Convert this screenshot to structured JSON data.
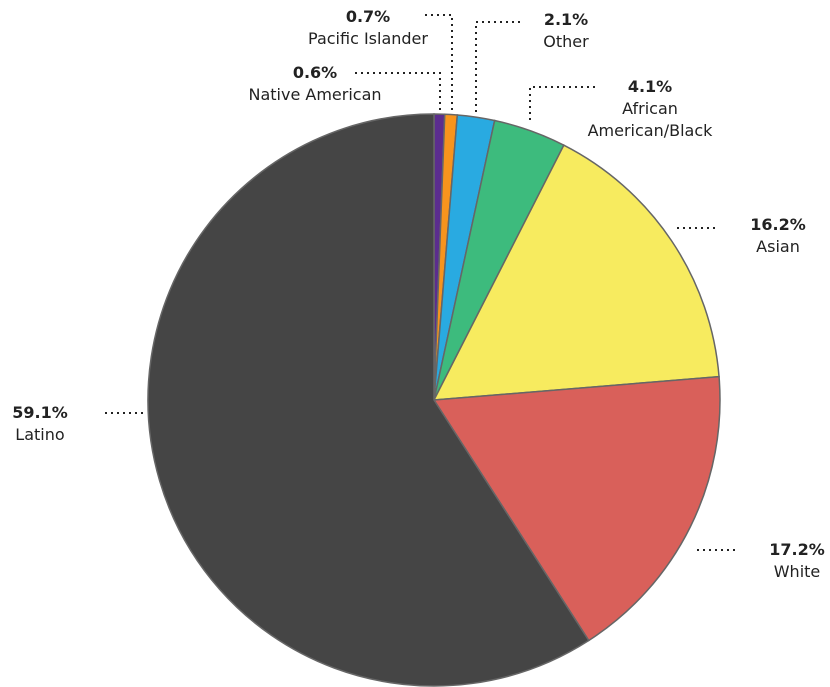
{
  "chart_data": {
    "type": "pie",
    "categories": [
      "Native American",
      "Pacific Islander",
      "Other",
      "African American/Black",
      "Asian",
      "White",
      "Latino"
    ],
    "values": [
      0.6,
      0.7,
      2.1,
      4.1,
      16.2,
      17.2,
      59.1
    ],
    "value_labels": [
      "0.6%",
      "0.7%",
      "2.1%",
      "4.1%",
      "16.2%",
      "17.2%",
      "59.1%"
    ],
    "colors": [
      "#5b2d8e",
      "#f7941d",
      "#29aae1",
      "#3dbb7d",
      "#f7eb5f",
      "#d9605a",
      "#454545"
    ]
  }
}
